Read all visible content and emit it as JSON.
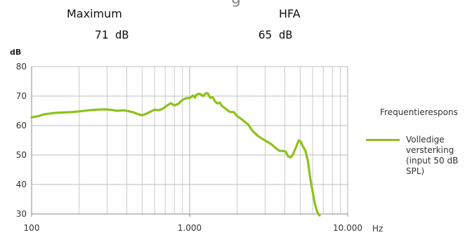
{
  "header": {
    "title_fragment": "g",
    "max_label": "Maximum",
    "max_value": "71 dB",
    "hfa_label": "HFA",
    "hfa_value": "65 dB"
  },
  "legend": {
    "title": "Frequentierespons",
    "series_name": "Volledige versterking (input 50 dB SPL)"
  },
  "colors": {
    "series": "#8cc21a",
    "grid": "#bdbdbd",
    "axis": "#888888"
  },
  "chart_data": {
    "type": "line",
    "ylabel": "dB",
    "xlabel": "Hz",
    "x_scale": "log",
    "xlim": [
      100,
      10000
    ],
    "ylim": [
      30,
      80
    ],
    "x_ticks": [
      100,
      1000,
      10000
    ],
    "x_tick_labels": [
      "100",
      "1.000",
      "10.000"
    ],
    "y_ticks": [
      30,
      40,
      50,
      60,
      70,
      80
    ],
    "y_tick_labels": [
      "30",
      "40",
      "50",
      "60",
      "70",
      "80"
    ],
    "series": [
      {
        "name": "Volledige versterking (input 50 dB SPL)",
        "x": [
          100,
          110,
          120,
          135,
          150,
          165,
          180,
          200,
          230,
          260,
          290,
          320,
          350,
          380,
          410,
          440,
          470,
          500,
          520,
          540,
          570,
          600,
          640,
          680,
          720,
          760,
          800,
          850,
          900,
          950,
          1000,
          1050,
          1080,
          1100,
          1140,
          1180,
          1220,
          1260,
          1300,
          1350,
          1400,
          1450,
          1500,
          1550,
          1600,
          1700,
          1800,
          1900,
          2000,
          2100,
          2200,
          2350,
          2500,
          2700,
          2900,
          3100,
          3300,
          3500,
          3700,
          3900,
          4050,
          4200,
          4350,
          4500,
          4700,
          4900,
          5050,
          5200,
          5400,
          5600,
          5800,
          6000,
          6200,
          6400,
          6550,
          6650
        ],
        "y": [
          62.8,
          63.2,
          63.8,
          64.2,
          64.4,
          64.5,
          64.6,
          64.8,
          65.2,
          65.4,
          65.5,
          65.3,
          65.0,
          65.2,
          64.9,
          64.5,
          63.9,
          63.5,
          63.8,
          64.2,
          64.8,
          65.4,
          65.2,
          65.8,
          66.8,
          67.6,
          66.8,
          67.4,
          68.7,
          69.3,
          69.3,
          70.2,
          69.5,
          70.4,
          70.8,
          70.6,
          70.0,
          70.9,
          71.0,
          69.4,
          69.6,
          68.2,
          67.5,
          67.8,
          66.7,
          65.6,
          64.6,
          64.6,
          63.2,
          62.4,
          61.6,
          60.3,
          58.2,
          56.5,
          55.4,
          54.5,
          53.6,
          52.4,
          51.4,
          51.4,
          51.2,
          49.5,
          49.2,
          50.2,
          52.5,
          55.0,
          54.5,
          53.0,
          51.5,
          48.0,
          42.0,
          37.5,
          33.5,
          30.8,
          29.8,
          29.5
        ]
      }
    ]
  }
}
